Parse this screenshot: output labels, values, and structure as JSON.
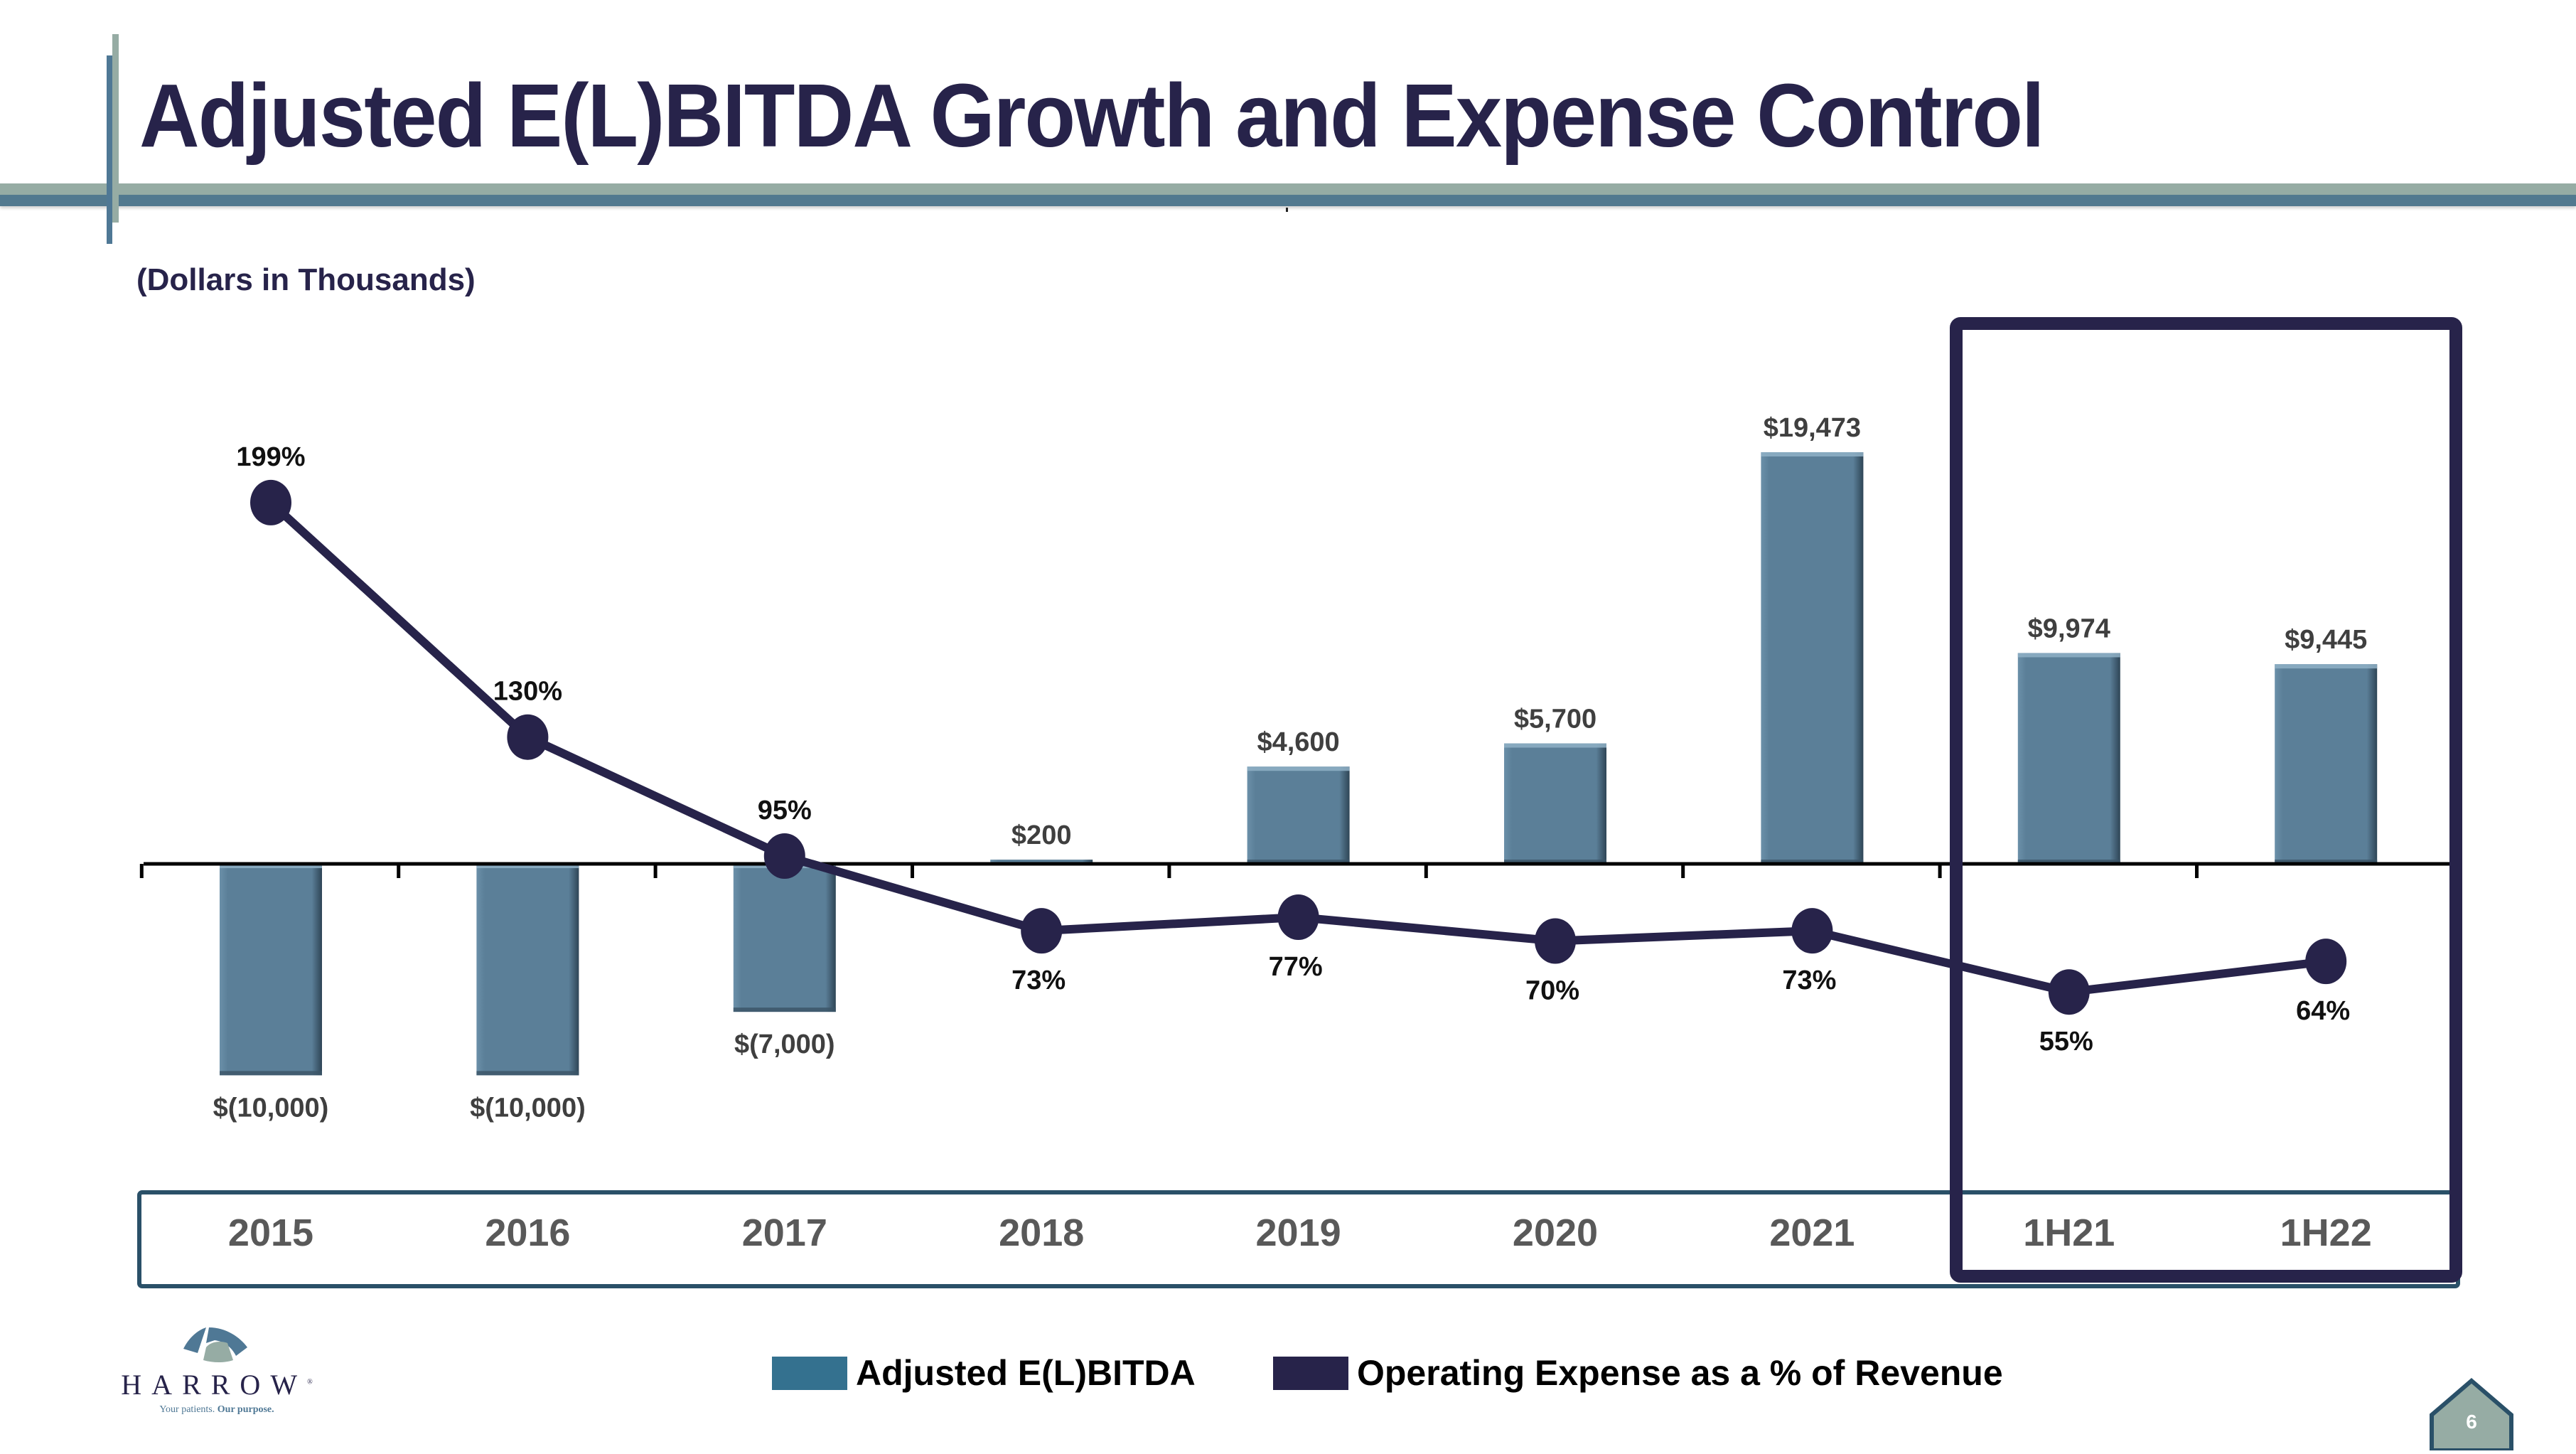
{
  "slide": {
    "title": "Adjusted E(L)BITDA Growth and Expense Control",
    "subtitle": "(Dollars in Thousands)",
    "page_number": "6",
    "brand": {
      "name": "HARROW",
      "registered": "®",
      "tagline_regular": "Your patients.",
      "tagline_bold": "Our purpose."
    },
    "colors": {
      "title": "#27234a",
      "bar": "#5b7f98",
      "line": "#27234a",
      "legend_bar": "#34718f",
      "band_border": "#2a5068",
      "highlight_border": "#27234a",
      "category_text": "#595959",
      "deco_light": "#96aca4",
      "deco_dark": "#52798f"
    }
  },
  "chart_data": {
    "type": "bar",
    "combo": "bar+line (secondary axis)",
    "title": "Adjusted E(L)BITDA Growth and Expense Control",
    "subtitle": "(Dollars in Thousands)",
    "categories": [
      "2015",
      "2016",
      "2017",
      "2018",
      "2019",
      "2020",
      "2021",
      "1H21",
      "1H22"
    ],
    "series": [
      {
        "name": "Adjusted E(L)BITDA",
        "type": "bar",
        "axis": "primary",
        "values": [
          -10000,
          -10000,
          -7000,
          200,
          4600,
          5700,
          19473,
          9974,
          9445
        ],
        "labels": [
          "$(10,000)",
          "$(10,000)",
          "$(7,000)",
          "$200",
          "$4,600",
          "$5,700",
          "$19,473",
          "$9,974",
          "$9,445"
        ]
      },
      {
        "name": "Operating Expense as a % of Revenue",
        "type": "line",
        "axis": "secondary",
        "values": [
          199,
          130,
          95,
          73,
          77,
          70,
          73,
          55,
          64
        ],
        "labels": [
          "199%",
          "130%",
          "95%",
          "73%",
          "77%",
          "70%",
          "73%",
          "55%",
          "64%"
        ],
        "label_position": [
          "above",
          "above",
          "above",
          "below",
          "below",
          "below",
          "below",
          "below",
          "below"
        ]
      }
    ],
    "highlighted_categories": [
      "1H21",
      "1H22"
    ],
    "xlabel": "",
    "ylabel": "",
    "ylim": [
      -10000,
      19473
    ],
    "y2lim": [
      55,
      199
    ],
    "grid": false,
    "legend": {
      "placement": "bottom-center",
      "entries": [
        "Adjusted E(L)BITDA",
        "Operating Expense as a % of Revenue"
      ]
    }
  }
}
